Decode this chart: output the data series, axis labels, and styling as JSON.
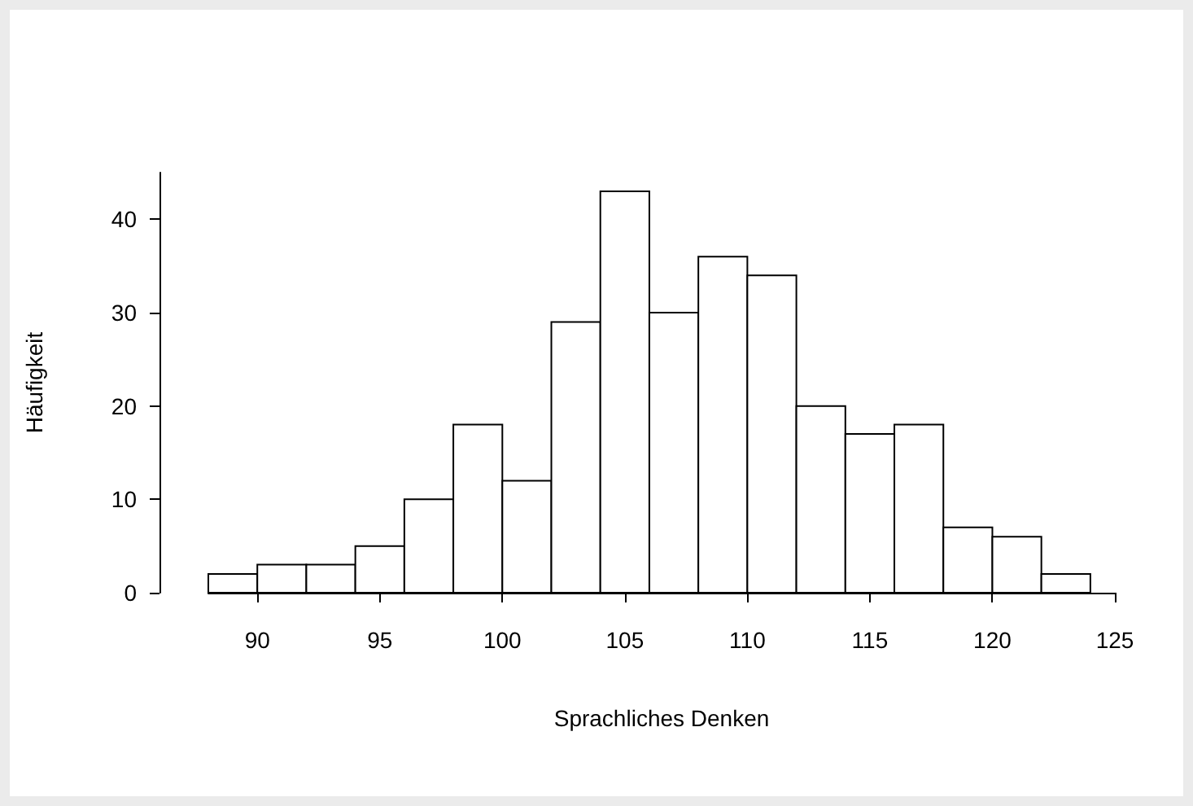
{
  "chart_data": {
    "type": "histogram",
    "xlabel": "Sprachliches Denken",
    "ylabel": "Häufigkeit",
    "bins": [
      88,
      90,
      92,
      94,
      96,
      98,
      100,
      102,
      104,
      106,
      108,
      110,
      112,
      114,
      116,
      118,
      120,
      122,
      124
    ],
    "values": [
      2,
      3,
      3,
      5,
      10,
      18,
      12,
      29,
      43,
      30,
      36,
      34,
      20,
      17,
      18,
      7,
      6,
      2
    ],
    "color": "#ffffff",
    "xlim": [
      88,
      125
    ],
    "xticks": [
      90,
      95,
      100,
      105,
      110,
      115,
      120,
      125
    ],
    "ylim": [
      0,
      45
    ],
    "yticks": [
      0,
      10,
      20,
      30,
      40
    ],
    "grid": false
  }
}
